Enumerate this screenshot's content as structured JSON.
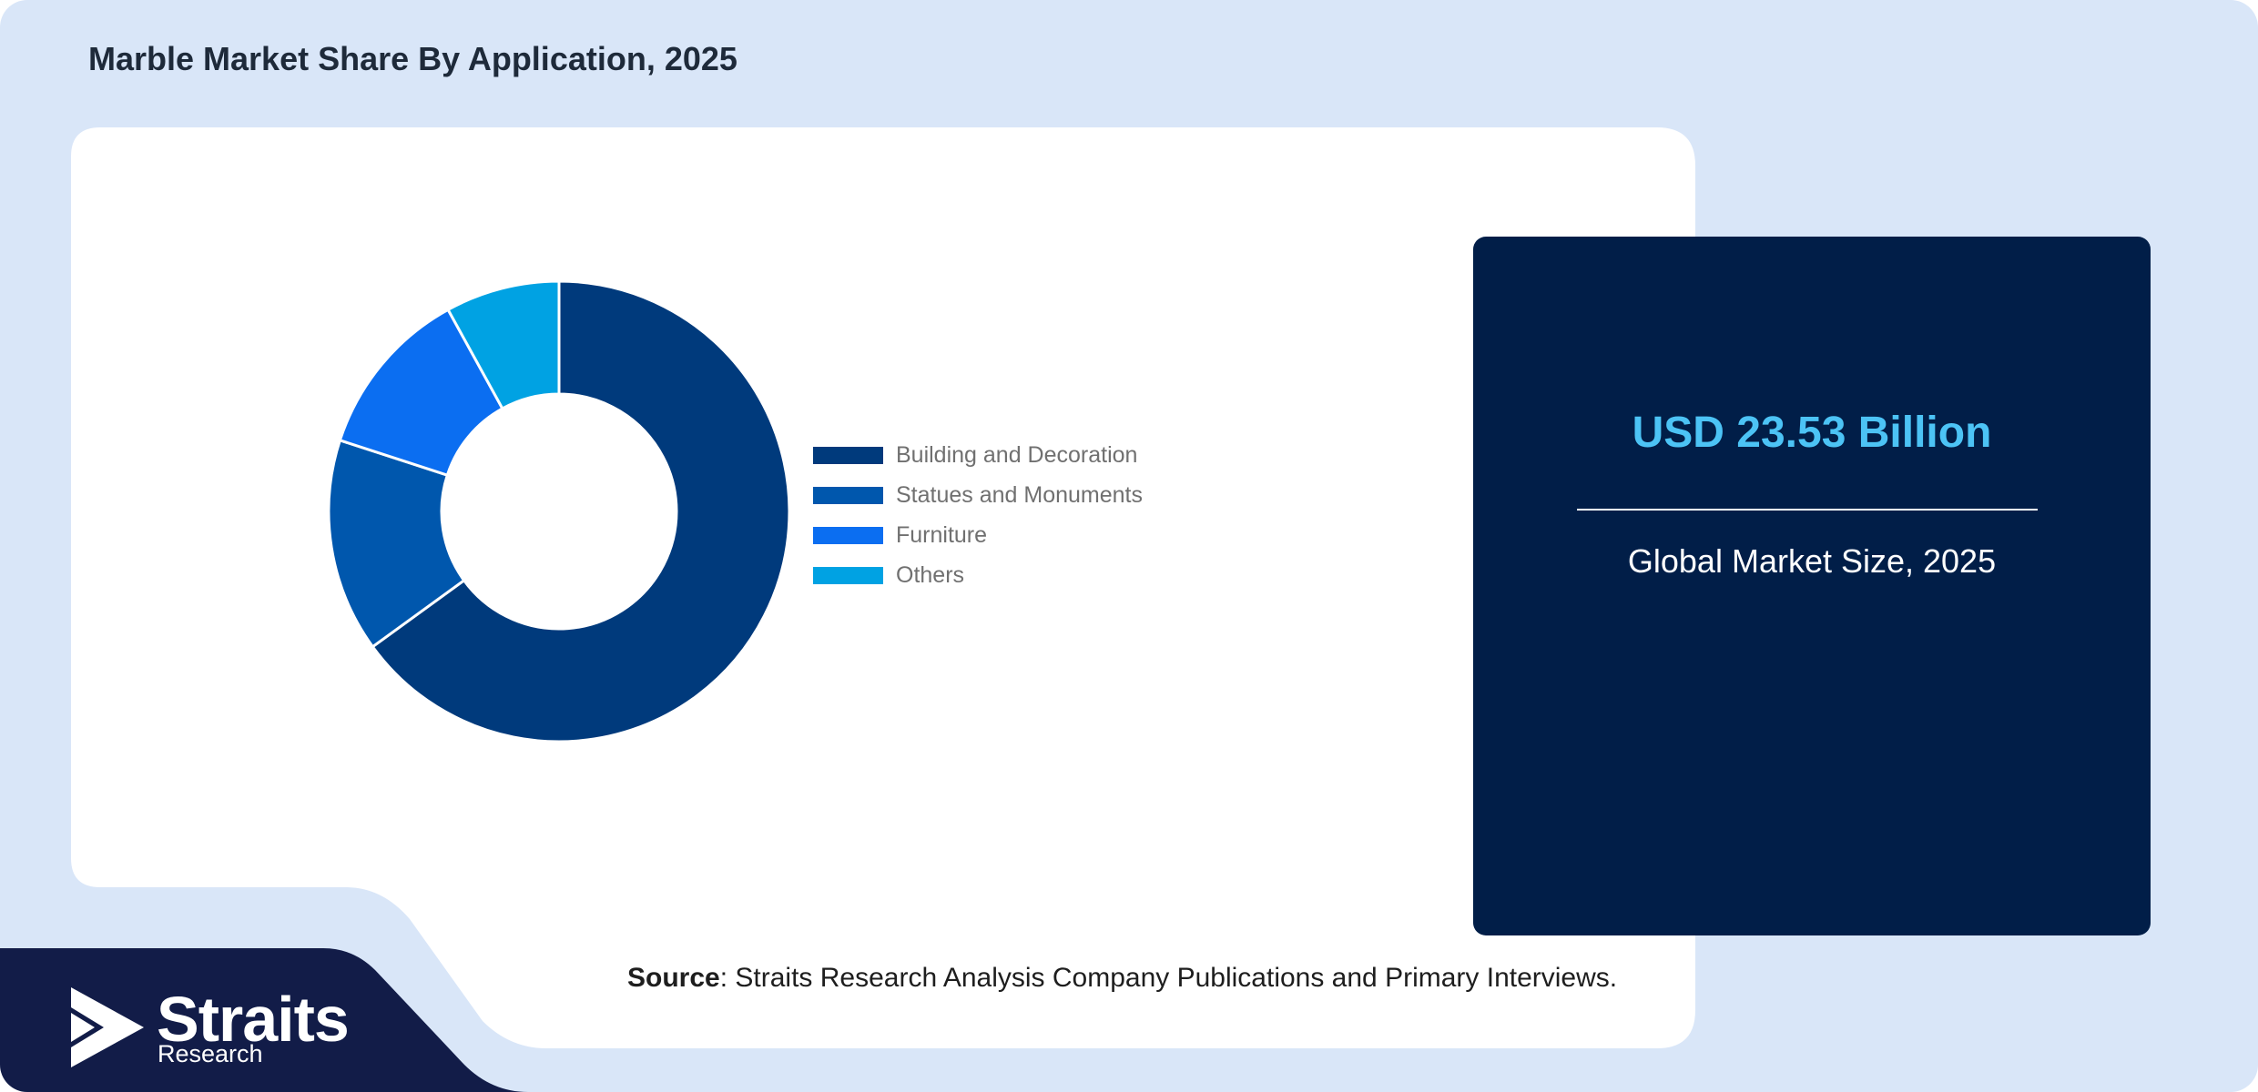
{
  "title": "Marble Market Share By Application, 2025",
  "chart_data": {
    "type": "pie",
    "donut": true,
    "legend_position": "right",
    "categories": [
      "Building and Decoration",
      "Statues and Monuments",
      "Furniture",
      "Others"
    ],
    "values": [
      65,
      15,
      12,
      8
    ],
    "colors": [
      "#003a7c",
      "#0057ad",
      "#0b6ef1",
      "#00a2e3"
    ]
  },
  "kpi": {
    "value": "USD 23.53 Billion",
    "label": "Global Market Size, 2025"
  },
  "source": {
    "prefix": "Source",
    "text": ": Straits Research Analysis Company Publications and Primary Interviews."
  },
  "brand": {
    "name": "Straits",
    "sub": "Research"
  }
}
